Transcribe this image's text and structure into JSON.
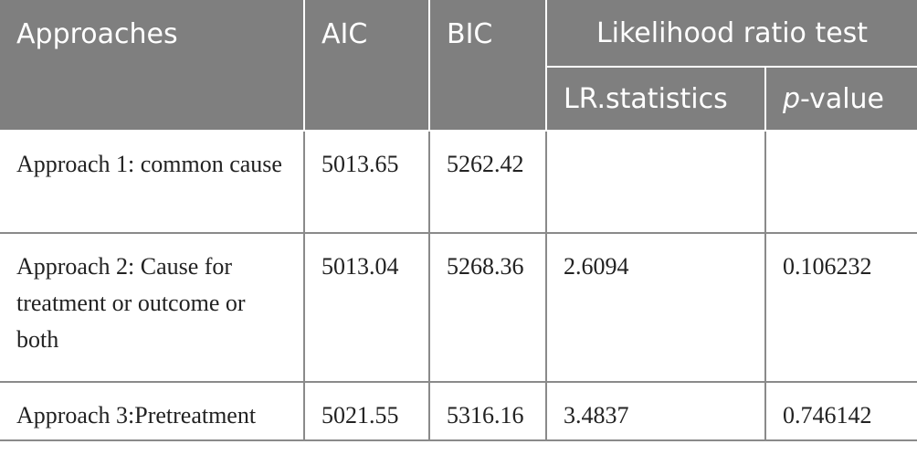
{
  "header": {
    "columns": [
      "Approaches",
      "AIC",
      "BIC",
      "Likelihood ratio test"
    ],
    "subcolumns": [
      "LR.statistics",
      {
        "italic": "p",
        "text": "-value"
      }
    ]
  },
  "table": {
    "rows": [
      [
        "Approach 1: common cause",
        "5013.65",
        "5262.42",
        null,
        null
      ],
      [
        "Approach 2: Cause for treatment or outcome or both",
        "5013.04",
        "5268.36",
        "2.6094",
        "0.106232"
      ],
      [
        "Approach 3:Pretreatment",
        "5021.55",
        "5316.16",
        "3.4837",
        "0.746142"
      ]
    ]
  }
}
